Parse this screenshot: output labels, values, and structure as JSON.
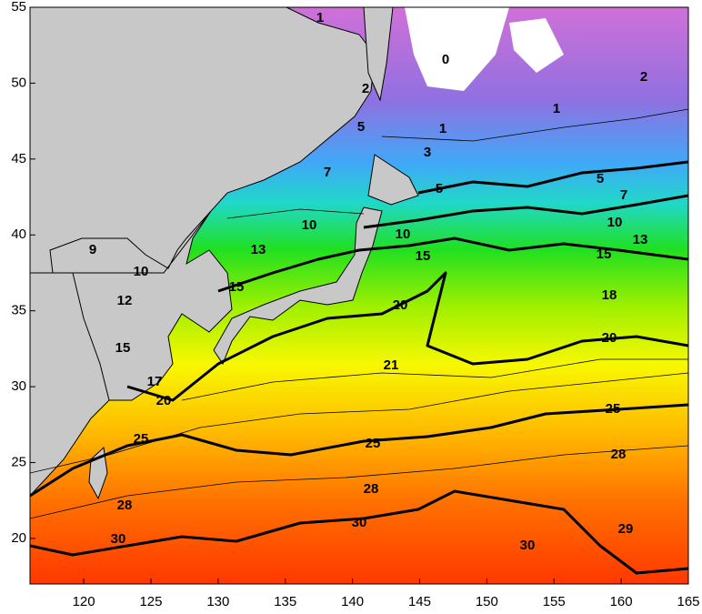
{
  "map": {
    "xlim": [
      116,
      165
    ],
    "ylim": [
      17,
      55
    ],
    "xticks": [
      120,
      125,
      130,
      135,
      140,
      145,
      150,
      155,
      160,
      165
    ],
    "yticks": [
      20,
      25,
      30,
      35,
      40,
      45,
      50,
      55
    ],
    "contour_labels": [
      "0",
      "2",
      "1",
      "1",
      "1",
      "2",
      "3",
      "5",
      "7",
      "5",
      "5",
      "7",
      "10",
      "10",
      "10",
      "13",
      "13",
      "15",
      "15",
      "15",
      "9",
      "10",
      "12",
      "15",
      "17",
      "20",
      "20",
      "18",
      "20",
      "21",
      "25",
      "25",
      "25",
      "28",
      "28",
      "28",
      "30",
      "30",
      "30",
      "29"
    ]
  }
}
